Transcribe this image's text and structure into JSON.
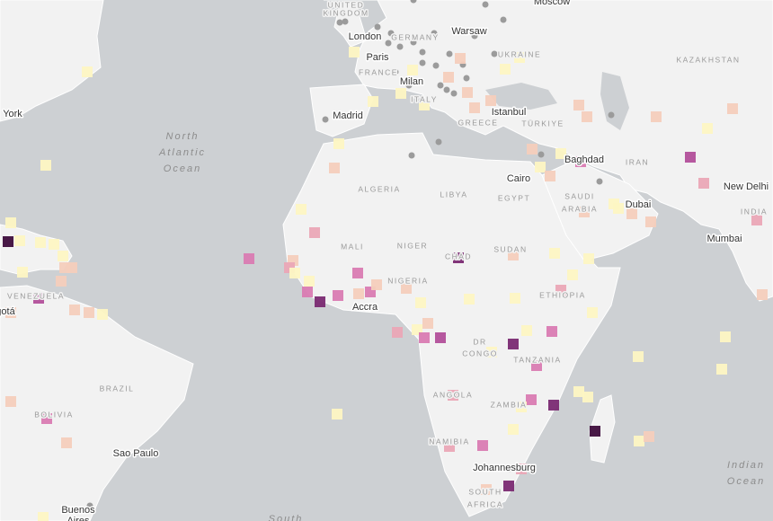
{
  "cities": [
    {
      "label": "Moscow"
    },
    {
      "label": "London"
    },
    {
      "label": "Warsaw"
    },
    {
      "label": "Paris"
    },
    {
      "label": "Milan"
    },
    {
      "label": "Madrid"
    },
    {
      "label": "Istanbul"
    },
    {
      "label": "Baghdad"
    },
    {
      "label": "Cairo"
    },
    {
      "label": "Dubai"
    },
    {
      "label": "New Delhi"
    },
    {
      "label": "Mumbai"
    },
    {
      "label": "York"
    },
    {
      "label": "Accra"
    },
    {
      "label": "Sao Paulo"
    },
    {
      "label": "Johannesburg"
    },
    {
      "label": "Buenos"
    },
    {
      "label": "Aires"
    },
    {
      "label": "gotá"
    }
  ],
  "countries": [
    {
      "label": "UNITED"
    },
    {
      "label": "KINGDOM"
    },
    {
      "label": "GERMANY"
    },
    {
      "label": "UKRAINE"
    },
    {
      "label": "FRANCE"
    },
    {
      "label": "ITALY"
    },
    {
      "label": "GREECE"
    },
    {
      "label": "TÜRKIYE"
    },
    {
      "label": "KAZAKHSTAN"
    },
    {
      "label": "IRAN"
    },
    {
      "label": "SAUDI"
    },
    {
      "label": "ARABIA"
    },
    {
      "label": "EGYPT"
    },
    {
      "label": "LIBYA"
    },
    {
      "label": "ALGERIA"
    },
    {
      "label": "MALI"
    },
    {
      "label": "NIGER"
    },
    {
      "label": "CHAD"
    },
    {
      "label": "SUDAN"
    },
    {
      "label": "NIGERIA"
    },
    {
      "label": "ETHIOPIA"
    },
    {
      "label": "DR"
    },
    {
      "label": "CONGO"
    },
    {
      "label": "TANZANIA"
    },
    {
      "label": "ANGOLA"
    },
    {
      "label": "ZAMBIA"
    },
    {
      "label": "NAMIBIA"
    },
    {
      "label": "SOUTH"
    },
    {
      "label": "AFRICA"
    },
    {
      "label": "INDIA"
    },
    {
      "label": "BRAZIL"
    },
    {
      "label": "BOLIVIA"
    },
    {
      "label": "VENEZUELA"
    }
  ],
  "oceans": [
    {
      "label": "North"
    },
    {
      "label": "Atlantic"
    },
    {
      "label": "Ocean"
    },
    {
      "label": "Indian"
    },
    {
      "label": "Ocean"
    },
    {
      "label": "South"
    }
  ]
}
